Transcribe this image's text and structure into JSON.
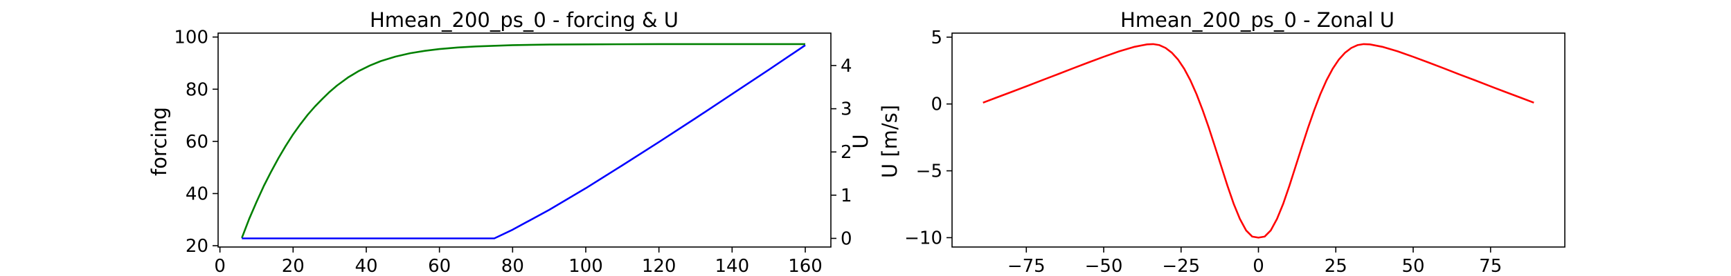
{
  "chart_data": [
    {
      "type": "line",
      "title": "Hmean_200_ps_0 - forcing & U",
      "xlabel": "",
      "ylabel": "forcing",
      "ylabel_right": "U",
      "xlim": [
        -0.5,
        167
      ],
      "ylim": [
        19.5,
        101.5
      ],
      "ylim_right": [
        -0.2,
        4.75
      ],
      "x_ticks": [
        0,
        20,
        40,
        60,
        80,
        100,
        120,
        140,
        160
      ],
      "y_ticks": [
        20,
        40,
        60,
        80,
        100
      ],
      "y_ticks_right": [
        0,
        1,
        2,
        3,
        4
      ],
      "grid": false,
      "series": [
        {
          "axis": "left",
          "color": "#008000",
          "x": [
            6,
            8,
            10,
            12,
            14,
            16,
            18,
            20,
            22,
            24,
            26,
            28,
            30,
            32,
            35,
            38,
            41,
            44,
            48,
            52,
            56,
            60,
            65,
            70,
            80,
            90,
            100,
            120,
            140,
            160
          ],
          "y": [
            23,
            30.3,
            36.8,
            42.9,
            48.4,
            53.6,
            58.3,
            62.7,
            66.6,
            70.2,
            73.4,
            76.3,
            79.0,
            81.4,
            84.5,
            87.0,
            89.1,
            90.8,
            92.5,
            93.8,
            94.7,
            95.4,
            96.0,
            96.4,
            96.9,
            97.1,
            97.2,
            97.3,
            97.3,
            97.3
          ]
        },
        {
          "axis": "right",
          "color": "#0000ff",
          "x": [
            6,
            75,
            80,
            90,
            100,
            110,
            120,
            130,
            140,
            150,
            160
          ],
          "y": [
            0,
            0,
            0.2,
            0.66,
            1.16,
            1.69,
            2.23,
            2.78,
            3.34,
            3.9,
            4.47
          ]
        }
      ]
    },
    {
      "type": "line",
      "title": "Hmean_200_ps_0 - Zonal U",
      "xlabel": "",
      "ylabel": "U [m/s]",
      "xlim": [
        -99,
        99
      ],
      "ylim": [
        -10.7,
        5.3
      ],
      "x_ticks": [
        -75,
        -50,
        -25,
        0,
        25,
        50,
        75
      ],
      "y_ticks": [
        -10,
        -5,
        0,
        5
      ],
      "grid": false,
      "series": [
        {
          "axis": "left",
          "color": "#ff0000",
          "x": [
            -89,
            -85,
            -80,
            -75,
            -70,
            -65,
            -60,
            -55,
            -50,
            -45,
            -40,
            -36,
            -34,
            -32,
            -30,
            -28,
            -26,
            -24,
            -22,
            -20,
            -18,
            -16,
            -14,
            -12,
            -10,
            -8,
            -6,
            -4,
            -2,
            0,
            2,
            4,
            6,
            8,
            10,
            12,
            14,
            16,
            18,
            20,
            22,
            24,
            26,
            28,
            30,
            32,
            34,
            36,
            40,
            45,
            50,
            55,
            60,
            65,
            70,
            75,
            80,
            85,
            89
          ],
          "y": [
            0.1,
            0.45,
            0.88,
            1.32,
            1.77,
            2.21,
            2.66,
            3.1,
            3.53,
            3.94,
            4.28,
            4.46,
            4.48,
            4.4,
            4.19,
            3.84,
            3.33,
            2.64,
            1.77,
            0.73,
            -0.47,
            -1.8,
            -3.22,
            -4.68,
            -6.12,
            -7.46,
            -8.6,
            -9.45,
            -9.92,
            -10.0,
            -9.92,
            -9.45,
            -8.6,
            -7.46,
            -6.12,
            -4.68,
            -3.22,
            -1.8,
            -0.47,
            0.73,
            1.77,
            2.64,
            3.33,
            3.84,
            4.19,
            4.4,
            4.48,
            4.46,
            4.28,
            3.94,
            3.53,
            3.1,
            2.66,
            2.21,
            1.77,
            1.32,
            0.88,
            0.45,
            0.1
          ]
        }
      ]
    }
  ]
}
